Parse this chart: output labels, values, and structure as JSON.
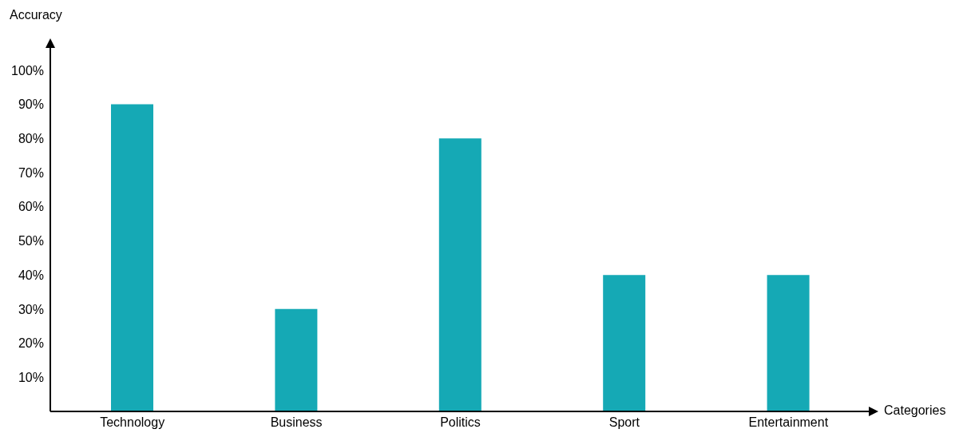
{
  "chart_data": {
    "type": "bar",
    "xlabel": "Categories",
    "ylabel": "Accuracy",
    "categories": [
      "Technology",
      "Business",
      "Politics",
      "Sport",
      "Entertainment"
    ],
    "values": [
      90,
      30,
      80,
      40,
      40
    ],
    "color": "#15a9b5",
    "ylim": [
      0,
      107
    ],
    "yticks": [
      {
        "value": 10,
        "label": "10%"
      },
      {
        "value": 20,
        "label": "20%"
      },
      {
        "value": 30,
        "label": "30%"
      },
      {
        "value": 40,
        "label": "40%"
      },
      {
        "value": 50,
        "label": "50%"
      },
      {
        "value": 60,
        "label": "60%"
      },
      {
        "value": 70,
        "label": "70%"
      },
      {
        "value": 80,
        "label": "80%"
      },
      {
        "value": 90,
        "label": "90%"
      },
      {
        "value": 100,
        "label": "100%"
      }
    ]
  }
}
